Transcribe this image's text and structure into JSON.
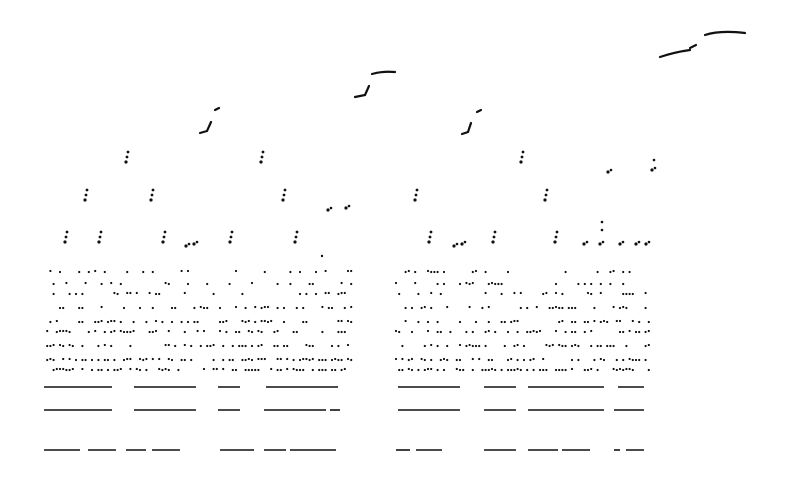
{
  "figure": {
    "description_visible_text": "",
    "ink_color": "#111111",
    "background_color": "#ffffff"
  }
}
